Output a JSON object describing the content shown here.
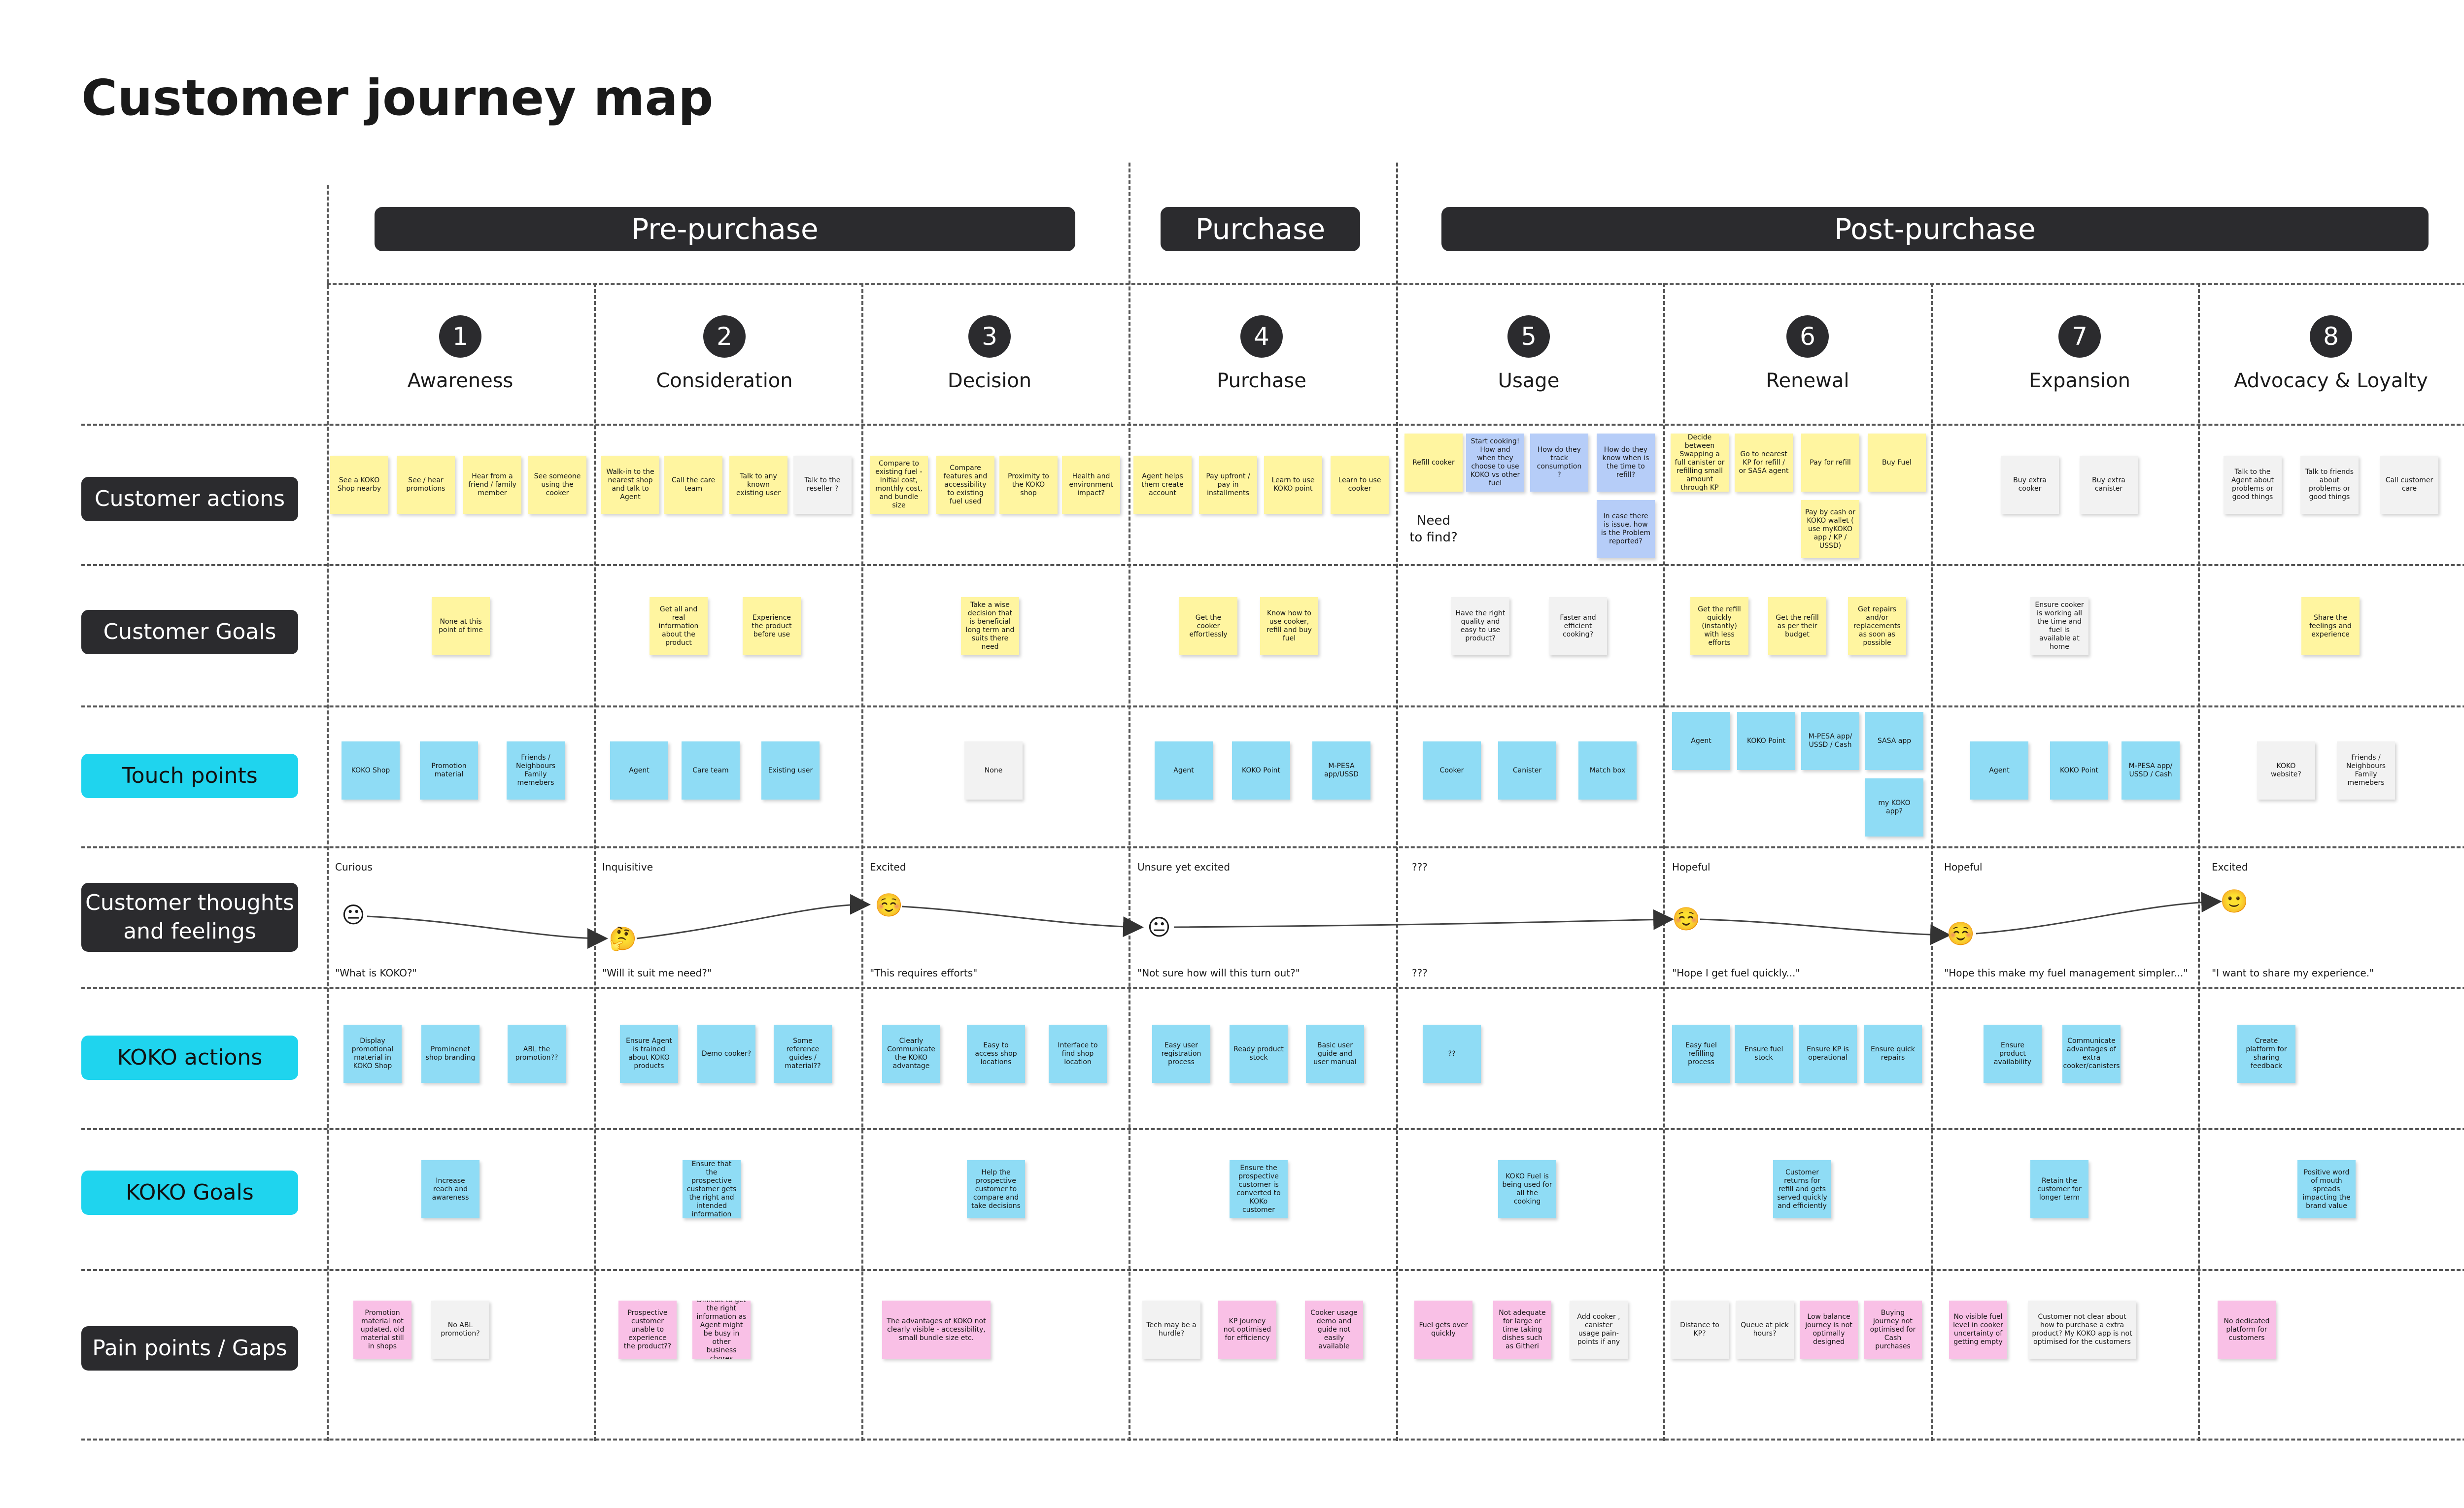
{
  "title": "Customer journey map",
  "phases": [
    "Pre-purchase",
    "Purchase",
    "Post-purchase"
  ],
  "stages": [
    {
      "num": "1",
      "name": "Awareness"
    },
    {
      "num": "2",
      "name": "Consideration"
    },
    {
      "num": "3",
      "name": "Decision"
    },
    {
      "num": "4",
      "name": "Purchase"
    },
    {
      "num": "5",
      "name": "Usage"
    },
    {
      "num": "6",
      "name": "Renewal"
    },
    {
      "num": "7",
      "name": "Expansion"
    },
    {
      "num": "8",
      "name": "Advocacy & Loyalty"
    }
  ],
  "rows": [
    "Customer actions",
    "Customer Goals",
    "Touch points",
    "Customer thoughts and feelings",
    "KOKO actions",
    "KOKO Goals",
    "Pain points / Gaps"
  ],
  "colors": {
    "dark": "#2b2b2e",
    "cyan": "#1fd4ee",
    "yellow": "#fff5a0",
    "blue": "#8fdcf5",
    "pink": "#f9c0e6",
    "grey": "#f2f2f2",
    "violet": "#b6cdf8"
  },
  "customer_actions": [
    "See a KOKO Shop nearby",
    "See / hear promotions",
    "Hear from a friend / family member",
    "See someone using the cooker",
    "Walk-in to the nearest shop and talk to Agent",
    "Call the care team",
    "Talk to any known existing user",
    "Talk to the reseller ?",
    "Compare to existing fuel - Initial cost, monthly cost, and bundle size",
    "Compare features and accessibility to existing fuel used",
    "Proximity to the KOKO shop",
    "Health and environment impact?",
    "Agent helps them create account",
    "Pay upfront / pay in installments",
    "Learn to use KOKO point",
    "Learn to use cooker",
    "Refill cooker",
    "Start cooking! How and when they choose to use KOKO vs other fuel",
    "How do they track consumption ?",
    "How do they know when is the time to refill?",
    "Need to find?",
    "In case there is issue, how is the Problem reported?",
    "Decide between Swapping a full canister or refilling small amount through KP",
    "Go to nearest KP for refill / or SASA agent",
    "Pay for refill",
    "Buy Fuel",
    "Pay by cash or KOKO wallet ( use myKOKO app / KP / USSD)",
    "Buy extra cooker",
    "Buy extra canister",
    "Talk to the Agent about problems or good things",
    "Talk to friends about problems or good things",
    "Call customer care"
  ],
  "customer_goals": [
    "None at this point of time",
    "Get all and real information about the product",
    "Experience the product before use",
    "Take a wise decision that is beneficial long term and suits there need",
    "Get the cooker effortlessly",
    "Know how to use cooker, refill and buy fuel",
    "Have the right quality and easy to use product?",
    "Faster and efficient cooking?",
    "Get the refill quickly (instantly) with less efforts",
    "Get the refill as per their budget",
    "Get repairs and/or replacements as soon as possible",
    "Ensure cooker is working all the time and fuel is available at home",
    "Share the feelings and experience"
  ],
  "touch_points": [
    "KOKO Shop",
    "Promotion material",
    "Friends / Neighbours Family memebers",
    "Agent",
    "Care team",
    "Existing user",
    "None",
    "Agent",
    "KOKO Point",
    "M-PESA app/USSD",
    "Cooker",
    "Canister",
    "Match box",
    "Agent",
    "KOKO Point",
    "M-PESA app/ USSD / Cash",
    "SASA app",
    "my KOKO app?",
    "Agent",
    "KOKO Point",
    "M-PESA app/ USSD / Cash",
    "KOKO website?",
    "Friends / Neighbours Family memebers"
  ],
  "thoughts": {
    "labels": [
      "Curious",
      "Inquisitive",
      "Excited",
      "Unsure yet excited",
      "???",
      "Hopeful",
      "Hopeful",
      "Excited"
    ],
    "quotes": [
      "\"What is KOKO?\"",
      "\"Will it suit me need?\"",
      "\"This requires efforts\"",
      "\"Not sure how will this turn out?\"",
      "???",
      "\"Hope I get fuel quickly...\"",
      "\"Hope this make my fuel management simpler...\"",
      "\"I want to share my experience.\""
    ],
    "emojis": [
      "😐",
      "🤔",
      "☺️",
      "😐",
      "☺️",
      "☺️",
      "🙂"
    ]
  },
  "koko_actions": [
    "Display promotional material in KOKO Shop",
    "Prominenet shop branding",
    "ABL the promotion??",
    "Ensure Agent is trained about KOKO products",
    "Demo cooker?",
    "Some reference guides / material??",
    "Clearly Communicate the KOKO advantage",
    "Easy to access shop locations",
    "Interface to find shop location",
    "Easy user registration process",
    "Ready product stock",
    "Basic user guide and user manual",
    "??",
    "Easy fuel refilling process",
    "Ensure fuel stock",
    "Ensure KP is operational",
    "Ensure quick repairs",
    "Ensure product availability",
    "Communicate advantages of extra cooker/canisters",
    "Create platform for sharing feedback"
  ],
  "koko_goals": [
    "Increase reach and awareness",
    "Ensure that the prospective customer gets the right and intended information",
    "Help the prospective customer to compare and take decisions",
    "Ensure the prospective customer is converted to KOKo customer",
    "KOKO Fuel is being used for all the cooking",
    "Customer returns for refill and gets served quickly and efficiently",
    "Retain the customer for longer term",
    "Positive word of mouth spreads impacting the brand value"
  ],
  "pain_points": [
    "Promotion material not updated, old material still in shops",
    "No ABL promotion?",
    "Prospective customer unable to experience the product??",
    "Difficult to get the right information as Agent might be busy in other business chores",
    "The advantages of KOKO not clearly visible - accessibility, small bundle size etc.",
    "Tech may be a hurdle?",
    "KP journey not optimised for efficiency",
    "Cooker usage demo and guide not easily available",
    "Fuel gets over quickly",
    "Not adequate for large or time taking dishes such as Githeri",
    "Add cooker , canister usage pain-points if any",
    "Distance to KP?",
    "Queue at pick hours?",
    "Low balance journey is not optimally designed",
    "Buying journey not optimised for Cash purchases",
    "No visible fuel level in cooker uncertainty of getting empty",
    "Customer not clear about how to purchase a extra product? My KOKO app is not optimised for the customers",
    "No dedicated platform for customers"
  ]
}
